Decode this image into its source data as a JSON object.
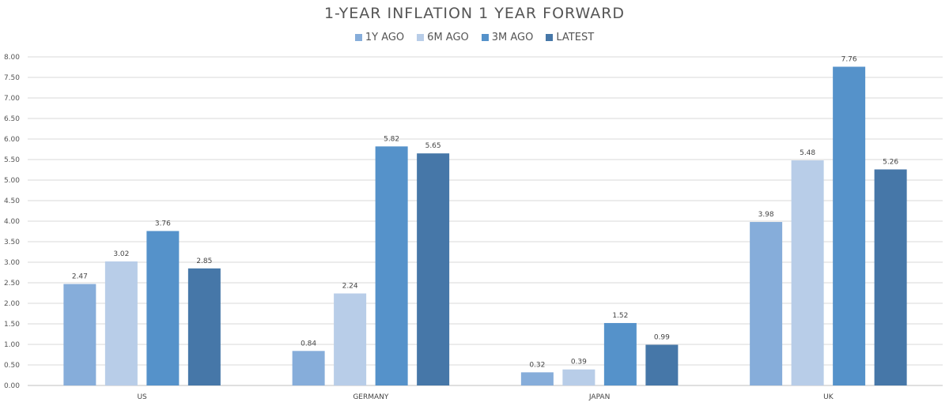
{
  "chart_data": {
    "type": "bar",
    "title": "1-YEAR INFLATION 1 YEAR FORWARD",
    "categories": [
      "US",
      "GERMANY",
      "JAPAN",
      "UK"
    ],
    "series": [
      {
        "name": "1Y AGO",
        "color": "#86adda",
        "values": [
          2.47,
          0.84,
          0.32,
          3.98
        ],
        "labels": [
          "2.47",
          "0.84",
          "0.32",
          "3.98"
        ]
      },
      {
        "name": "6M AGO",
        "color": "#b8cde8",
        "values": [
          3.02,
          2.24,
          0.39,
          5.48
        ],
        "labels": [
          "3.02",
          "2.24",
          "0.39",
          "5.48"
        ]
      },
      {
        "name": "3M AGO",
        "color": "#5592ca",
        "values": [
          3.76,
          5.82,
          1.52,
          7.76
        ],
        "labels": [
          "3.76",
          "5.82",
          "1.52",
          "7.76"
        ]
      },
      {
        "name": "LATEST",
        "color": "#4677a8",
        "values": [
          2.85,
          5.65,
          0.99,
          5.26
        ],
        "labels": [
          "2.85",
          "5.65",
          "0.99",
          "5.26"
        ]
      }
    ],
    "ylim": [
      0,
      8
    ],
    "yticks": [
      "0.00",
      "0.50",
      "1.00",
      "1.50",
      "2.00",
      "2.50",
      "3.00",
      "3.50",
      "4.00",
      "4.50",
      "5.00",
      "5.50",
      "6.00",
      "6.50",
      "7.00",
      "7.50",
      "8.00"
    ],
    "grid": true,
    "legend_position": "top-center"
  }
}
